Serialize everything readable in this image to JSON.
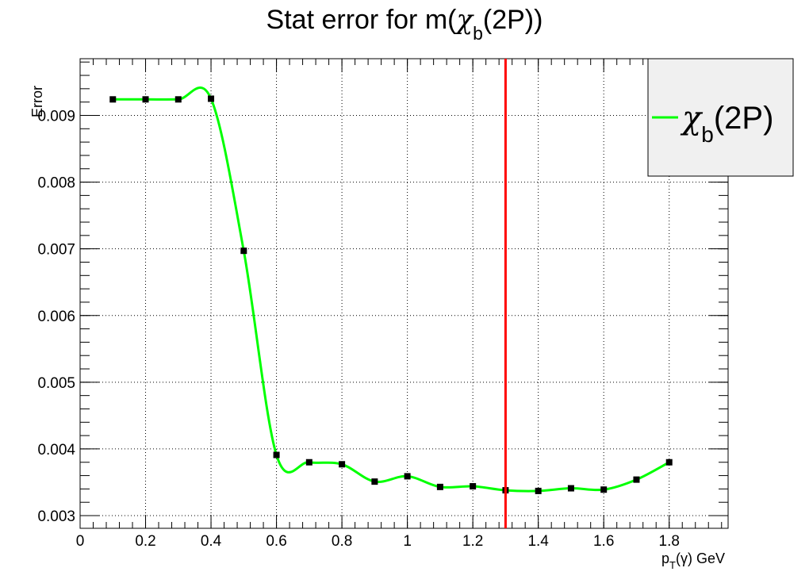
{
  "chart_data": {
    "type": "line",
    "title": {
      "text": "Stat error for m(",
      "symbol": "χ",
      "sub": "b",
      "tail": "(2P))"
    },
    "xlabel": {
      "main": "p",
      "sub": "T",
      "tail": "(γ) GeV"
    },
    "ylabel": "Error",
    "xlim": [
      0,
      1.98
    ],
    "ylim": [
      0.00281,
      0.00985
    ],
    "grid": true,
    "x_ticks": [
      0,
      0.2,
      0.4,
      0.6,
      0.8,
      1,
      1.2,
      1.4,
      1.6,
      1.8
    ],
    "x_tick_labels": [
      "0",
      "0.2",
      "0.4",
      "0.6",
      "0.8",
      "1",
      "1.2",
      "1.4",
      "1.6",
      "1.8"
    ],
    "y_ticks": [
      0.003,
      0.004,
      0.005,
      0.006,
      0.007,
      0.008,
      0.009
    ],
    "y_tick_labels": [
      "0.003",
      "0.004",
      "0.005",
      "0.006",
      "0.007",
      "0.008",
      "0.009"
    ],
    "series": [
      {
        "name": "χb(2P)",
        "color": "#00ff00",
        "marker_color": "#000000",
        "x": [
          0.1,
          0.2,
          0.3,
          0.4,
          0.5,
          0.6,
          0.7,
          0.8,
          0.9,
          1.0,
          1.1,
          1.2,
          1.3,
          1.4,
          1.5,
          1.6,
          1.7,
          1.8
        ],
        "y": [
          0.00924,
          0.00924,
          0.00924,
          0.00925,
          0.00697,
          0.00391,
          0.0038,
          0.00377,
          0.00351,
          0.00359,
          0.00343,
          0.00344,
          0.00338,
          0.00337,
          0.00341,
          0.00339,
          0.00354,
          0.0038
        ]
      }
    ],
    "vertical_line": {
      "x": 1.3,
      "color": "#ff0000"
    },
    "legend": {
      "placement": "top-right",
      "symbol": "χ",
      "sub": "b",
      "tail": "(2P)",
      "background": "#f0f0f0"
    }
  }
}
